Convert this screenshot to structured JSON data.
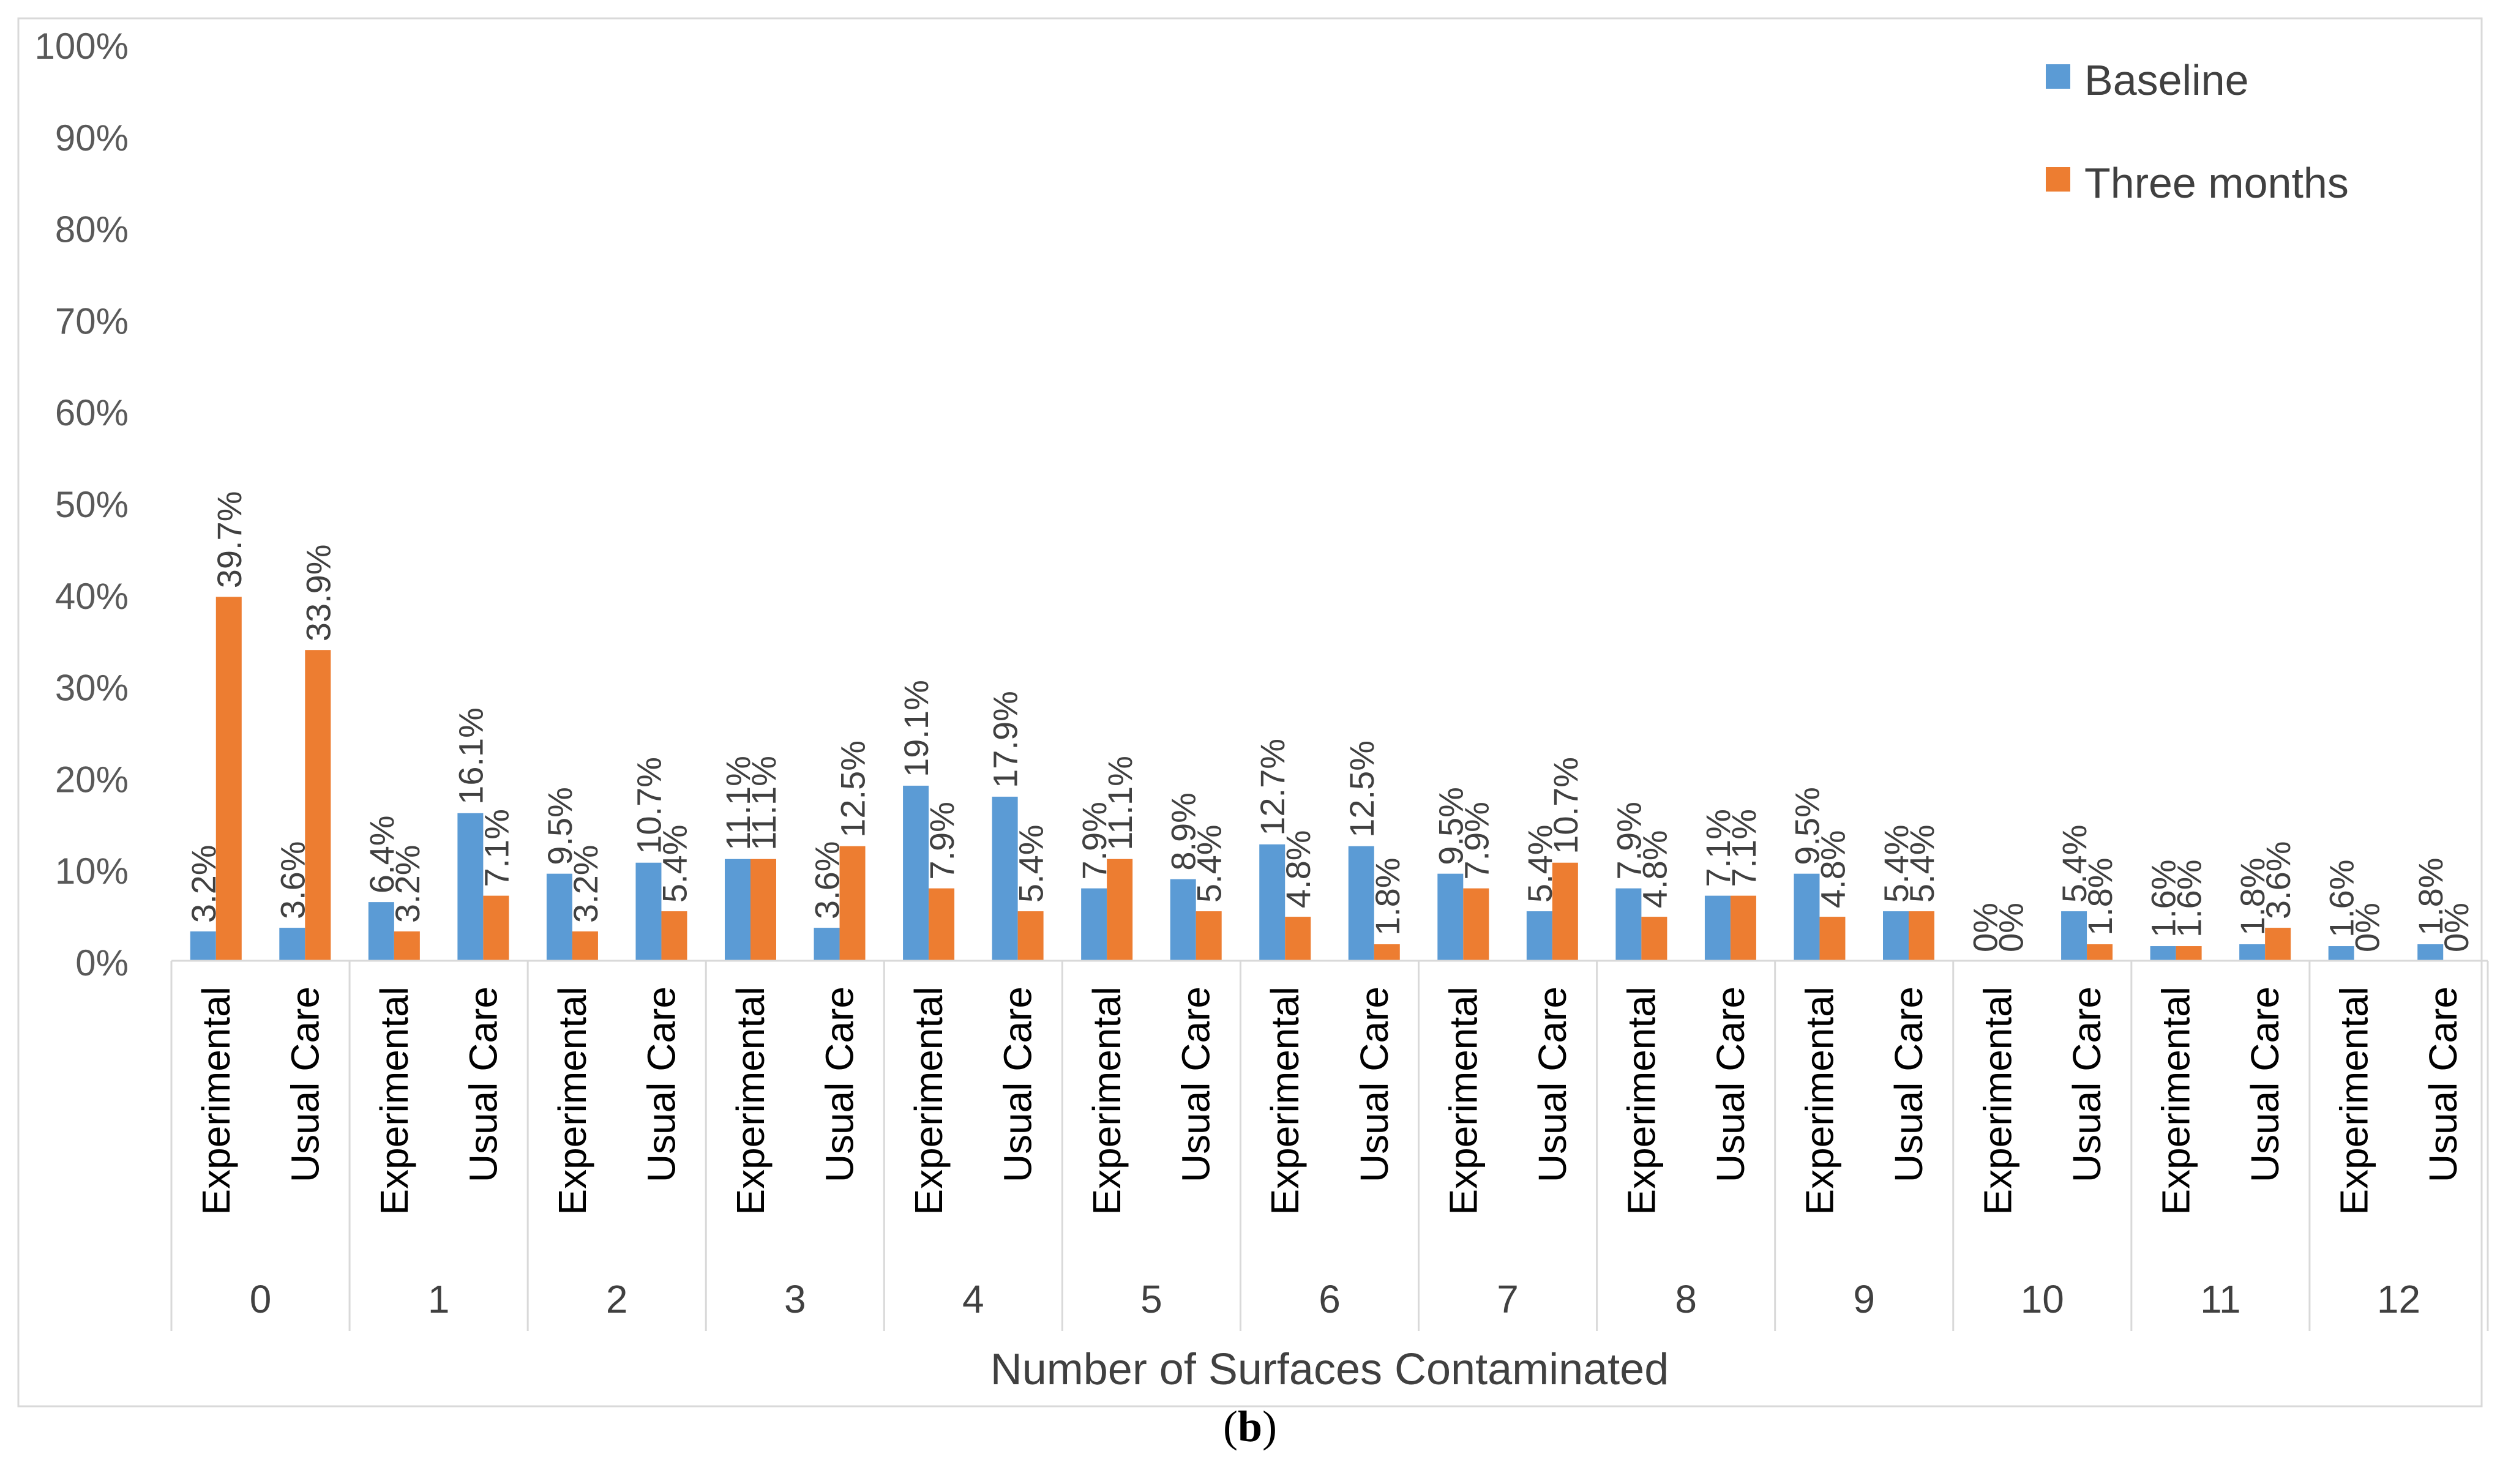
{
  "caption": {
    "open": "(",
    "letter": "b",
    "close": ")"
  },
  "chart_data": {
    "type": "bar",
    "title": "",
    "xlabel": "Number of Surfaces Contaminated",
    "ylabel": "",
    "ylim": [
      0,
      100
    ],
    "yticks": [
      "0%",
      "10%",
      "20%",
      "30%",
      "40%",
      "50%",
      "60%",
      "70%",
      "80%",
      "90%",
      "100%"
    ],
    "grid": false,
    "legend_position": "top-right",
    "colors": {
      "Baseline": "#5B9BD5",
      "Three months": "#ED7D31"
    },
    "group_labels": [
      "0",
      "1",
      "2",
      "3",
      "4",
      "5",
      "6",
      "7",
      "8",
      "9",
      "10",
      "11",
      "12"
    ],
    "subcategory_labels": [
      "Experimental",
      "Usual Care"
    ],
    "series": [
      {
        "name": "Baseline",
        "values": [
          3.2,
          3.6,
          6.4,
          16.1,
          9.5,
          10.7,
          11.1,
          3.6,
          19.1,
          17.9,
          7.9,
          8.9,
          12.7,
          12.5,
          9.5,
          5.4,
          7.9,
          7.1,
          9.5,
          5.4,
          0,
          5.4,
          1.6,
          1.8,
          1.6,
          1.8
        ],
        "labels": [
          "3.2%",
          "3.6%",
          "6.4%",
          "16.1%",
          "9.5%",
          "10.7%",
          "11.1%",
          "3.6%",
          "19.1%",
          "17.9%",
          "7.9%",
          "8.9%",
          "12.7%",
          "12.5%",
          "9.5%",
          "5.4%",
          "7.9%",
          "7.1%",
          "9.5%",
          "5.4%",
          "0%",
          "5.4%",
          "1.6%",
          "1.8%",
          "1.6%",
          "1.8%"
        ]
      },
      {
        "name": "Three months",
        "values": [
          39.7,
          33.9,
          3.2,
          7.1,
          3.2,
          5.4,
          11.1,
          12.5,
          7.9,
          5.4,
          11.1,
          5.4,
          4.8,
          1.8,
          7.9,
          10.7,
          4.8,
          7.1,
          4.8,
          5.4,
          0,
          1.8,
          1.6,
          3.6,
          0,
          0
        ],
        "labels": [
          "39.7%",
          "33.9%",
          "3.2%",
          "7.1%",
          "3.2%",
          "5.4%",
          "11.1%",
          "12.5%",
          "7.9%",
          "5.4%",
          "11.1%",
          "5.4%",
          "4.8%",
          "1.8%",
          "7.9%",
          "10.7%",
          "4.8%",
          "7.1%",
          "4.8%",
          "5.4%",
          "0%",
          "1.8%",
          "1.6%",
          "3.6%",
          "0%",
          "0%"
        ]
      }
    ]
  }
}
